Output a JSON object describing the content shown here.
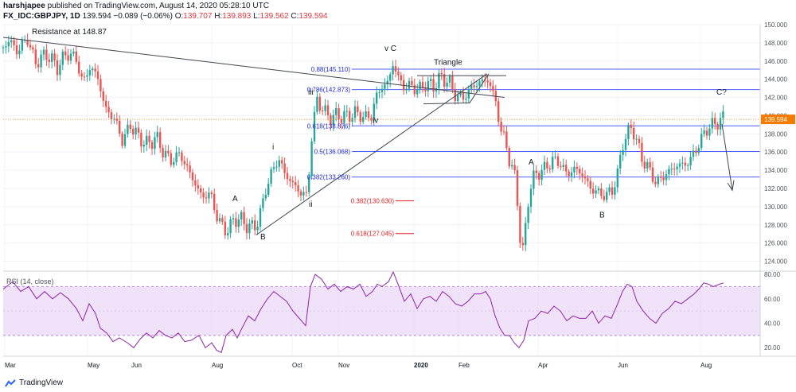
{
  "header": {
    "publisher": "harshjapee",
    "published_text": "published on TradingView.com, August 14, 2020 05:28:10 UTC",
    "symbol": "FX_IDC:GBPJPY, 1D",
    "last": "139.594",
    "change": "−0.089 (−0.06%)",
    "open_label": "O:",
    "open": "139.707",
    "high_label": "H:",
    "high": "139.893",
    "low_label": "L:",
    "low": "139.562",
    "close_label": "C:",
    "close": "139.594"
  },
  "footer": {
    "brand": "TradingView"
  },
  "colors": {
    "up": "#26a69a",
    "down": "#ef5350",
    "fib": "#4b5cff",
    "fib_text": "#1e2bd6",
    "red_level": "#e31e24",
    "rsi": "#8e24aa",
    "rsi_band": "#e9d5f5",
    "price_tag": "#f57c00"
  },
  "chart_data": [
    {
      "type": "candlestick",
      "title": "FX_IDC:GBPJPY, 1D",
      "ylim": [
        123,
        150
      ],
      "y_ticks": [
        "124.000",
        "126.000",
        "128.000",
        "130.000",
        "132.000",
        "134.000",
        "136.000",
        "138.000",
        "140.000",
        "142.000",
        "144.000",
        "146.000",
        "148.000",
        "150.000"
      ],
      "x_ticks": [
        "Mar",
        "May",
        "Jun",
        "Aug",
        "Oct",
        "Nov",
        "2020",
        "Feb",
        "Apr",
        "Jun",
        "Aug"
      ],
      "last_price_label": "139.594",
      "close_path": [
        [
          0,
          147.5
        ],
        [
          8,
          148.3
        ],
        [
          18,
          147.0
        ],
        [
          30,
          148.6
        ],
        [
          40,
          145.8
        ],
        [
          55,
          146.8
        ],
        [
          68,
          145.3
        ],
        [
          80,
          146.9
        ],
        [
          92,
          146.2
        ],
        [
          100,
          143.5
        ],
        [
          108,
          145.3
        ],
        [
          118,
          144.5
        ],
        [
          128,
          140.8
        ],
        [
          140,
          139.6
        ],
        [
          150,
          137.2
        ],
        [
          160,
          139.0
        ],
        [
          170,
          137.6
        ],
        [
          182,
          136.8
        ],
        [
          192,
          137.7
        ],
        [
          200,
          136.2
        ],
        [
          210,
          135.0
        ],
        [
          222,
          135.8
        ],
        [
          232,
          134.1
        ],
        [
          242,
          132.4
        ],
        [
          250,
          131.0
        ],
        [
          260,
          131.5
        ],
        [
          268,
          129.0
        ],
        [
          278,
          127.4
        ],
        [
          284,
          127.6
        ],
        [
          290,
          128.6
        ],
        [
          297,
          128.7
        ],
        [
          305,
          128.0
        ],
        [
          312,
          127.7
        ],
        [
          318,
          128.0
        ],
        [
          324,
          129.5
        ],
        [
          330,
          132.0
        ],
        [
          338,
          133.9
        ],
        [
          346,
          135.3
        ],
        [
          354,
          133.6
        ],
        [
          364,
          132.5
        ],
        [
          374,
          131.5
        ],
        [
          382,
          131.2
        ],
        [
          388,
          138.0
        ],
        [
          394,
          141.8
        ],
        [
          402,
          140.6
        ],
        [
          410,
          139.8
        ],
        [
          420,
          140.0
        ],
        [
          432,
          139.9
        ],
        [
          442,
          140.3
        ],
        [
          452,
          139.9
        ],
        [
          462,
          139.8
        ],
        [
          468,
          142.0
        ],
        [
          476,
          143.2
        ],
        [
          484,
          143.7
        ],
        [
          490,
          145.8
        ],
        [
          496,
          144.2
        ],
        [
          504,
          143.1
        ],
        [
          512,
          143.3
        ],
        [
          522,
          142.8
        ],
        [
          530,
          143.5
        ],
        [
          540,
          143.2
        ],
        [
          550,
          144.2
        ],
        [
          560,
          143.7
        ],
        [
          568,
          142.3
        ],
        [
          576,
          141.8
        ],
        [
          584,
          142.6
        ],
        [
          592,
          143.4
        ],
        [
          600,
          143.7
        ],
        [
          608,
          144.0
        ],
        [
          612,
          143.3
        ],
        [
          620,
          141.2
        ],
        [
          624,
          138.6
        ],
        [
          630,
          137.5
        ],
        [
          636,
          135.0
        ],
        [
          642,
          133.8
        ],
        [
          646,
          130.5
        ],
        [
          650,
          126.0
        ],
        [
          654,
          124.8
        ],
        [
          658,
          130.0
        ],
        [
          664,
          132.8
        ],
        [
          672,
          133.8
        ],
        [
          680,
          134.1
        ],
        [
          690,
          135.1
        ],
        [
          700,
          134.8
        ],
        [
          708,
          133.5
        ],
        [
          718,
          134.2
        ],
        [
          728,
          133.5
        ],
        [
          738,
          132.0
        ],
        [
          748,
          131.5
        ],
        [
          758,
          131.2
        ],
        [
          766,
          132.0
        ],
        [
          772,
          133.5
        ],
        [
          778,
          137.0
        ],
        [
          784,
          137.8
        ],
        [
          790,
          139.0
        ],
        [
          796,
          137.0
        ],
        [
          804,
          135.0
        ],
        [
          812,
          134.0
        ],
        [
          820,
          132.6
        ],
        [
          828,
          133.2
        ],
        [
          838,
          134.0
        ],
        [
          848,
          134.6
        ],
        [
          856,
          134.6
        ],
        [
          862,
          135.0
        ],
        [
          870,
          136.2
        ],
        [
          878,
          137.6
        ],
        [
          886,
          138.8
        ],
        [
          894,
          139.0
        ],
        [
          900,
          139.6
        ],
        [
          905,
          139.6
        ]
      ],
      "resistance_label": "Resistance at 148.87",
      "fib_levels": [
        {
          "label": "0.88(145.110)",
          "value": 145.11
        },
        {
          "label": "0.786(142.873)",
          "value": 142.873
        },
        {
          "label": "0.618(138.876)",
          "value": 138.876
        },
        {
          "label": "0.5(136.068)",
          "value": 136.068
        },
        {
          "label": "0.382(133.260)",
          "value": 133.26
        }
      ],
      "red_levels": [
        {
          "label": "0.382(130.630)",
          "value": 130.63
        },
        {
          "label": "0.618(127.045)",
          "value": 127.045
        }
      ],
      "annotations": [
        "Triangle",
        "v C",
        "iii",
        "iv",
        "i",
        "ii",
        "A",
        "B",
        "A",
        "B",
        "C?"
      ]
    },
    {
      "type": "line",
      "title": "RSI (14, close)",
      "ylim": [
        13,
        82
      ],
      "y_ticks": [
        "20.00",
        "40.00",
        "60.00",
        "80.00"
      ],
      "band": [
        30,
        70
      ],
      "path": [
        [
          0,
          68
        ],
        [
          12,
          74
        ],
        [
          22,
          66
        ],
        [
          32,
          70
        ],
        [
          42,
          60
        ],
        [
          52,
          66
        ],
        [
          62,
          60
        ],
        [
          72,
          65
        ],
        [
          82,
          60
        ],
        [
          92,
          52
        ],
        [
          100,
          42
        ],
        [
          108,
          56
        ],
        [
          116,
          48
        ],
        [
          122,
          36
        ],
        [
          130,
          32
        ],
        [
          138,
          25
        ],
        [
          146,
          28
        ],
        [
          156,
          24
        ],
        [
          164,
          20
        ],
        [
          172,
          27
        ],
        [
          180,
          32
        ],
        [
          188,
          28
        ],
        [
          196,
          34
        ],
        [
          204,
          30
        ],
        [
          212,
          28
        ],
        [
          220,
          32
        ],
        [
          228,
          25
        ],
        [
          236,
          26
        ],
        [
          246,
          30
        ],
        [
          254,
          20
        ],
        [
          262,
          24
        ],
        [
          268,
          18
        ],
        [
          274,
          16
        ],
        [
          280,
          30
        ],
        [
          288,
          35
        ],
        [
          294,
          28
        ],
        [
          300,
          36
        ],
        [
          308,
          46
        ],
        [
          316,
          42
        ],
        [
          324,
          52
        ],
        [
          332,
          60
        ],
        [
          340,
          66
        ],
        [
          348,
          62
        ],
        [
          356,
          58
        ],
        [
          364,
          50
        ],
        [
          372,
          44
        ],
        [
          380,
          38
        ],
        [
          386,
          70
        ],
        [
          392,
          80
        ],
        [
          400,
          76
        ],
        [
          408,
          68
        ],
        [
          416,
          72
        ],
        [
          424,
          66
        ],
        [
          432,
          70
        ],
        [
          440,
          68
        ],
        [
          448,
          72
        ],
        [
          456,
          62
        ],
        [
          464,
          66
        ],
        [
          470,
          72
        ],
        [
          476,
          70
        ],
        [
          484,
          74
        ],
        [
          490,
          82
        ],
        [
          496,
          72
        ],
        [
          504,
          58
        ],
        [
          512,
          64
        ],
        [
          520,
          52
        ],
        [
          528,
          60
        ],
        [
          536,
          62
        ],
        [
          544,
          58
        ],
        [
          552,
          66
        ],
        [
          560,
          62
        ],
        [
          568,
          56
        ],
        [
          576,
          54
        ],
        [
          584,
          58
        ],
        [
          592,
          64
        ],
        [
          600,
          64
        ],
        [
          606,
          66
        ],
        [
          612,
          60
        ],
        [
          618,
          46
        ],
        [
          624,
          36
        ],
        [
          630,
          30
        ],
        [
          636,
          30
        ],
        [
          642,
          24
        ],
        [
          648,
          20
        ],
        [
          654,
          26
        ],
        [
          660,
          42
        ],
        [
          668,
          44
        ],
        [
          676,
          50
        ],
        [
          684,
          48
        ],
        [
          692,
          54
        ],
        [
          700,
          50
        ],
        [
          708,
          42
        ],
        [
          716,
          46
        ],
        [
          724,
          44
        ],
        [
          732,
          44
        ],
        [
          740,
          50
        ],
        [
          748,
          40
        ],
        [
          756,
          46
        ],
        [
          764,
          44
        ],
        [
          772,
          56
        ],
        [
          778,
          66
        ],
        [
          784,
          72
        ],
        [
          790,
          70
        ],
        [
          796,
          58
        ],
        [
          804,
          50
        ],
        [
          812,
          44
        ],
        [
          820,
          40
        ],
        [
          828,
          48
        ],
        [
          836,
          52
        ],
        [
          844,
          58
        ],
        [
          852,
          56
        ],
        [
          860,
          60
        ],
        [
          868,
          64
        ],
        [
          874,
          68
        ],
        [
          880,
          73
        ],
        [
          886,
          72
        ],
        [
          892,
          70
        ],
        [
          900,
          72
        ],
        [
          905,
          73
        ]
      ]
    }
  ]
}
